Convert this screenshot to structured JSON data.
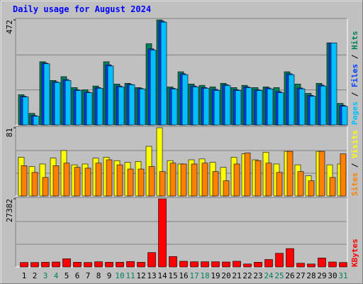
{
  "chart_data": {
    "type": "bar",
    "title": "Daily usage for August 2024",
    "categories": [
      "1",
      "2",
      "3",
      "4",
      "5",
      "6",
      "7",
      "8",
      "9",
      "10",
      "11",
      "12",
      "13",
      "14",
      "15",
      "16",
      "17",
      "18",
      "19",
      "20",
      "21",
      "22",
      "23",
      "24",
      "25",
      "26",
      "27",
      "28",
      "29",
      "30",
      "31"
    ],
    "category_colors": [
      "#000000",
      "#000000",
      "#00805c",
      "#00805c",
      "#000000",
      "#000000",
      "#000000",
      "#000000",
      "#000000",
      "#00805c",
      "#00805c",
      "#000000",
      "#000000",
      "#000000",
      "#000000",
      "#000000",
      "#00805c",
      "#00805c",
      "#000000",
      "#000000",
      "#000000",
      "#000000",
      "#000000",
      "#00805c",
      "#00805c",
      "#000000",
      "#000000",
      "#000000",
      "#000000",
      "#000000",
      "#00805c"
    ],
    "legend_separator": " / ",
    "grid": true,
    "panels": [
      {
        "ylim": [
          0,
          472
        ],
        "yticks": [
          472
        ],
        "series": [
          {
            "name": "Hits",
            "color": "#00805c",
            "values": [
              136,
              52,
              284,
              200,
              217,
              168,
              158,
              175,
              284,
              184,
              187,
              168,
              365,
              472,
              171,
              239,
              184,
              178,
              171,
              187,
              168,
              178,
              168,
              171,
              168,
              239,
              184,
              142,
              187,
              369,
              97
            ]
          },
          {
            "name": "Files",
            "color": "#0040ff",
            "values": [
              129,
              42,
              278,
              194,
              204,
              158,
              148,
              168,
              270,
              175,
              183,
              164,
              342,
              466,
              165,
              230,
              175,
              168,
              160,
              181,
              158,
              171,
              158,
              166,
              150,
              230,
              166,
              133,
              179,
              369,
              88
            ]
          },
          {
            "name": "Pages",
            "color": "#00c0ff",
            "values": [
              126,
              39,
              275,
              191,
              200,
              155,
              145,
              165,
              265,
              171,
              181,
              162,
              336,
              462,
              162,
              226,
              171,
              165,
              155,
              178,
              155,
              168,
              155,
              162,
              145,
              226,
              162,
              129,
              175,
              369,
              84
            ]
          }
        ]
      },
      {
        "ylim": [
          0,
          81
        ],
        "yticks": [
          81
        ],
        "series": [
          {
            "name": "Visits",
            "color": "#ffff00",
            "values": [
              46,
              35,
              38,
              45,
              54,
              37,
              38,
              45,
              46,
              42,
              40,
              41,
              59,
              81,
              42,
              38,
              43,
              44,
              40,
              34,
              46,
              50,
              43,
              52,
              38,
              53,
              37,
              24,
              53,
              37,
              38
            ]
          },
          {
            "name": "Sites",
            "color": "#ff8000",
            "values": [
              36,
              28,
              22,
              36,
              39,
              34,
              33,
              39,
              43,
              37,
              32,
              32,
              35,
              29,
              39,
              38,
              38,
              39,
              29,
              18,
              38,
              51,
              42,
              39,
              28,
              53,
              29,
              18,
              53,
              22,
              50
            ]
          }
        ]
      },
      {
        "ylim": [
          0,
          27382
        ],
        "yticks": [
          27382
        ],
        "series": [
          {
            "name": "KBytes",
            "color": "#ff0000",
            "values": [
              1800,
              1800,
              1900,
              2000,
              3300,
              1900,
              1800,
              2100,
              1900,
              1900,
              2200,
              1900,
              5800,
              27382,
              4200,
              2300,
              2100,
              2100,
              2100,
              2000,
              2300,
              1200,
              1900,
              3000,
              5500,
              7400,
              1500,
              1200,
              3600,
              2000,
              1800
            ]
          }
        ]
      }
    ]
  }
}
